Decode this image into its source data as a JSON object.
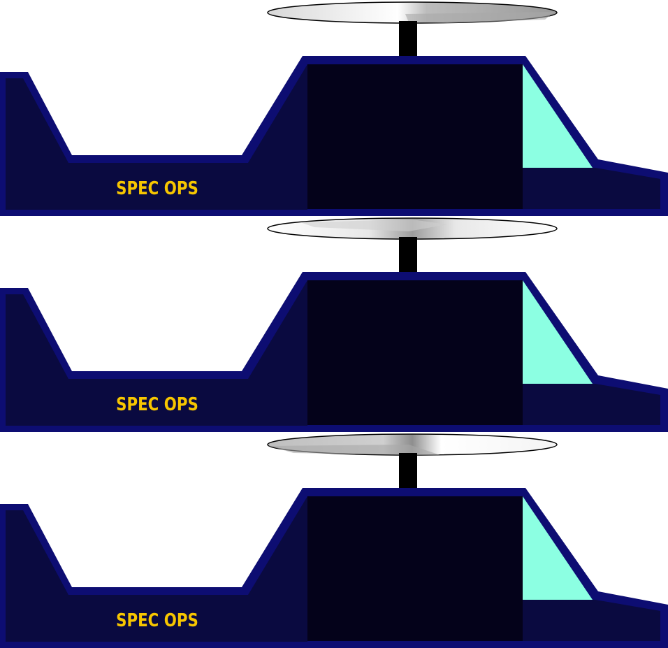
{
  "sprite_sheet": {
    "frames": [
      {
        "label": "SPEC OPS",
        "rotor_highlight": "right"
      },
      {
        "label": "SPEC OPS",
        "rotor_highlight": "center"
      },
      {
        "label": "SPEC OPS",
        "rotor_highlight": "left"
      }
    ]
  },
  "colors": {
    "background": "#ffffff",
    "hull_outline": "#0d0d72",
    "hull_fill": "#0a0a40",
    "cabin_fill": "#04021a",
    "windshield": "#8cffe2",
    "rotor_mast": "#000000",
    "rotor_disc": "#e0e0e0",
    "label_text": "#f7c600"
  }
}
